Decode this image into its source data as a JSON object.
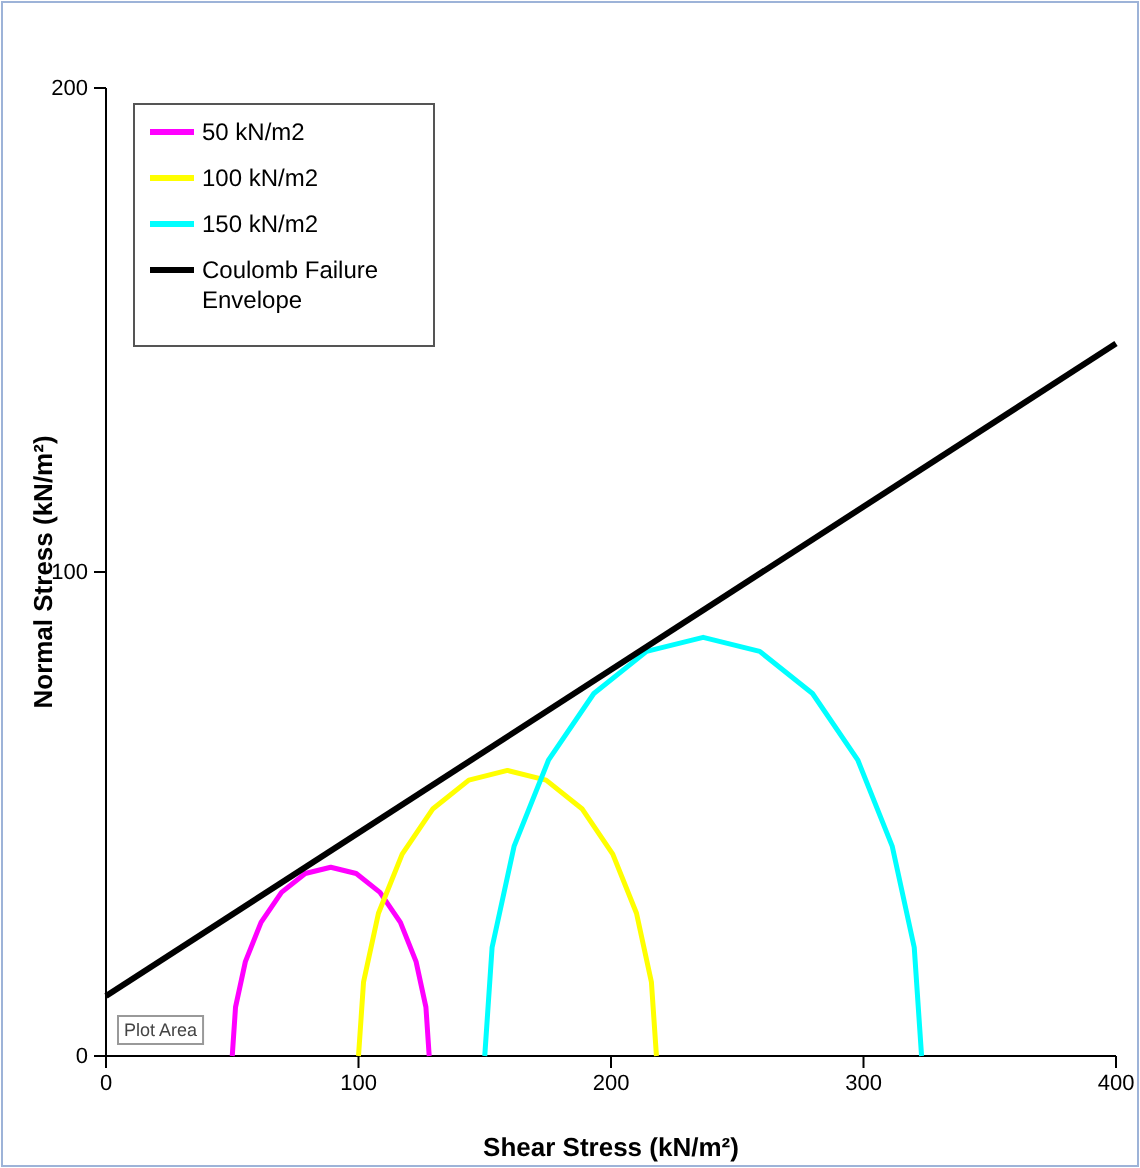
{
  "chart_data": {
    "type": "line",
    "xlabel": "Shear Stress (kN/m²)",
    "ylabel": "Normal Stress (kN/m²)",
    "xlim": [
      0,
      400
    ],
    "xticks": [
      0,
      100,
      200,
      300,
      400
    ],
    "ylim": [
      0,
      200
    ],
    "yticks": [
      0,
      100,
      200
    ],
    "legend": "top left",
    "marker": "none",
    "line_style": "solid",
    "annotations": [
      "Plot Area"
    ],
    "series": [
      {
        "name": "50 kN/m2",
        "color": "#ff00ff",
        "x": [
          50,
          51.3,
          55.2,
          61.4,
          69.5,
          78.9,
          89,
          99.1,
          108.5,
          116.6,
          122.8,
          126.7,
          128
        ],
        "values": [
          0,
          10.1,
          19.5,
          27.6,
          33.8,
          37.7,
          39,
          37.7,
          33.8,
          27.6,
          19.5,
          10.1,
          0
        ]
      },
      {
        "name": "100 kN/m2",
        "color": "#ffff00",
        "x": [
          100,
          102,
          107.9,
          117.3,
          129.5,
          143.7,
          159,
          174.3,
          188.5,
          200.7,
          210.1,
          216,
          218
        ],
        "values": [
          0,
          15.3,
          29.5,
          41.7,
          51.1,
          57,
          59,
          57,
          51.1,
          41.7,
          29.5,
          15.3,
          0
        ]
      },
      {
        "name": "150 kN/m2",
        "color": "#00ffff",
        "x": [
          150,
          152.9,
          161.6,
          175.3,
          193.2,
          214.1,
          236.5,
          258.9,
          279.8,
          297.7,
          311.4,
          320.1,
          323
        ],
        "values": [
          0,
          22.4,
          43.3,
          61.2,
          74.9,
          83.6,
          86.5,
          83.6,
          74.9,
          61.2,
          43.3,
          22.4,
          0
        ]
      },
      {
        "name": "Coulomb Failure Envelope",
        "color": "#000000",
        "x": [
          0,
          400
        ],
        "values": [
          12.4,
          147.2
        ]
      }
    ]
  }
}
